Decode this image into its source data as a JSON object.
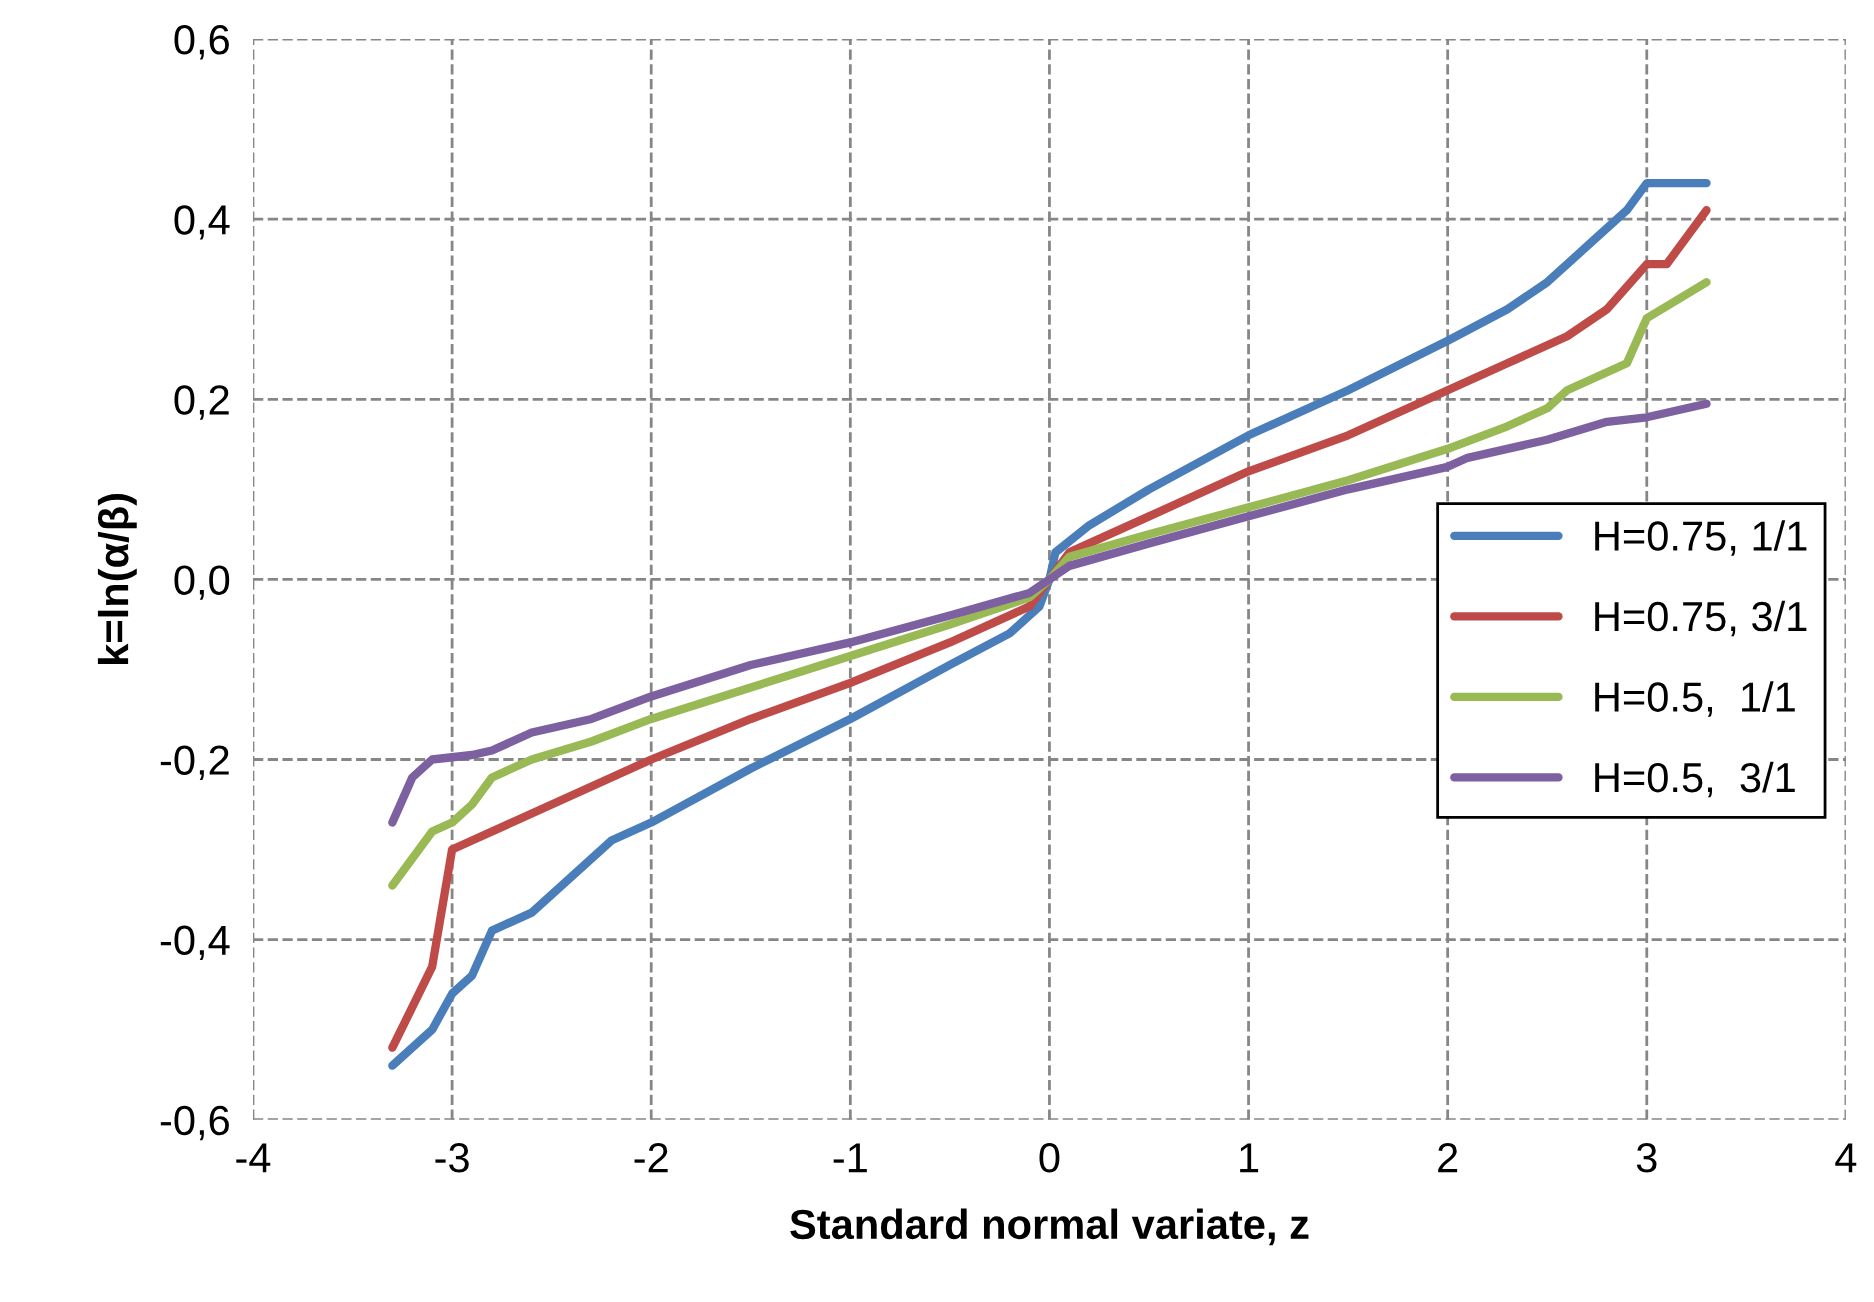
{
  "chart_data": {
    "type": "line",
    "xlabel": "Standard normal variate, z",
    "ylabel": "k=ln(α/β)",
    "xlim": [
      -4,
      4
    ],
    "xticks": [
      -4,
      -3,
      -2,
      -1,
      0,
      1,
      2,
      3,
      4
    ],
    "ylim": [
      -0.6,
      0.6
    ],
    "yticks": [
      {
        "value": -0.6,
        "label": "-0,6"
      },
      {
        "value": -0.4,
        "label": "-0,4"
      },
      {
        "value": -0.2,
        "label": "-0,2"
      },
      {
        "value": 0,
        "label": "0,0"
      },
      {
        "value": 0.2,
        "label": "0,2"
      },
      {
        "value": 0.4,
        "label": "0,4"
      },
      {
        "value": 0.6,
        "label": "0,6"
      }
    ],
    "grid": true,
    "legend": "right",
    "marker": "none",
    "line_style": "solid",
    "series": [
      {
        "name": "H=0.75, 1/1",
        "color": "#4a7ebb",
        "x": [
          -3.3,
          -3.1,
          -3.0,
          -2.9,
          -2.8,
          -2.6,
          -2.5,
          -2.3,
          -2.2,
          -2.0,
          -1.5,
          -1.0,
          -0.5,
          -0.2,
          -0.05,
          0,
          0.03,
          0.2,
          0.5,
          1.0,
          1.5,
          2.0,
          2.3,
          2.5,
          2.7,
          2.9,
          3.0,
          3.3
        ],
        "values": [
          -0.54,
          -0.5,
          -0.46,
          -0.44,
          -0.39,
          -0.37,
          -0.35,
          -0.31,
          -0.29,
          -0.27,
          -0.21,
          -0.155,
          -0.095,
          -0.06,
          -0.03,
          0.0,
          0.03,
          0.06,
          0.1,
          0.16,
          0.21,
          0.265,
          0.3,
          0.33,
          0.37,
          0.41,
          0.44,
          0.44
        ]
      },
      {
        "name": "H=0.75, 3/1",
        "color": "#be4b48",
        "x": [
          -3.3,
          -3.1,
          -3.0,
          -2.9,
          -2.7,
          -2.5,
          -2.2,
          -2.0,
          -1.5,
          -1.0,
          -0.5,
          -0.1,
          0,
          0.1,
          0.5,
          1.0,
          1.5,
          2.0,
          2.3,
          2.6,
          2.8,
          3.0,
          3.1,
          3.3
        ],
        "values": [
          -0.52,
          -0.43,
          -0.3,
          -0.29,
          -0.27,
          -0.25,
          -0.22,
          -0.2,
          -0.155,
          -0.115,
          -0.07,
          -0.03,
          0.0,
          0.03,
          0.07,
          0.12,
          0.16,
          0.21,
          0.24,
          0.27,
          0.3,
          0.35,
          0.35,
          0.41
        ]
      },
      {
        "name": "H=0.5,  1/1",
        "color": "#98b954",
        "x": [
          -3.3,
          -3.1,
          -3.0,
          -2.9,
          -2.8,
          -2.6,
          -2.3,
          -2.0,
          -1.5,
          -1.0,
          -0.5,
          -0.1,
          0,
          0.1,
          0.5,
          1.0,
          1.5,
          2.0,
          2.3,
          2.5,
          2.6,
          2.9,
          3.0,
          3.3
        ],
        "values": [
          -0.34,
          -0.28,
          -0.27,
          -0.25,
          -0.22,
          -0.2,
          -0.18,
          -0.155,
          -0.12,
          -0.085,
          -0.05,
          -0.02,
          0.0,
          0.025,
          0.05,
          0.08,
          0.11,
          0.145,
          0.17,
          0.19,
          0.21,
          0.24,
          0.29,
          0.33
        ]
      },
      {
        "name": "H=0.5,  3/1",
        "color": "#7d60a0",
        "x": [
          -3.3,
          -3.2,
          -3.1,
          -2.9,
          -2.8,
          -2.6,
          -2.3,
          -2.0,
          -1.5,
          -1.0,
          -0.5,
          -0.1,
          0,
          0.1,
          0.5,
          1.0,
          1.5,
          2.0,
          2.1,
          2.5,
          2.8,
          3.0,
          3.3
        ],
        "values": [
          -0.27,
          -0.22,
          -0.2,
          -0.195,
          -0.19,
          -0.17,
          -0.155,
          -0.13,
          -0.095,
          -0.07,
          -0.04,
          -0.015,
          0.0,
          0.015,
          0.04,
          0.07,
          0.1,
          0.125,
          0.135,
          0.155,
          0.175,
          0.18,
          0.195
        ]
      }
    ]
  }
}
